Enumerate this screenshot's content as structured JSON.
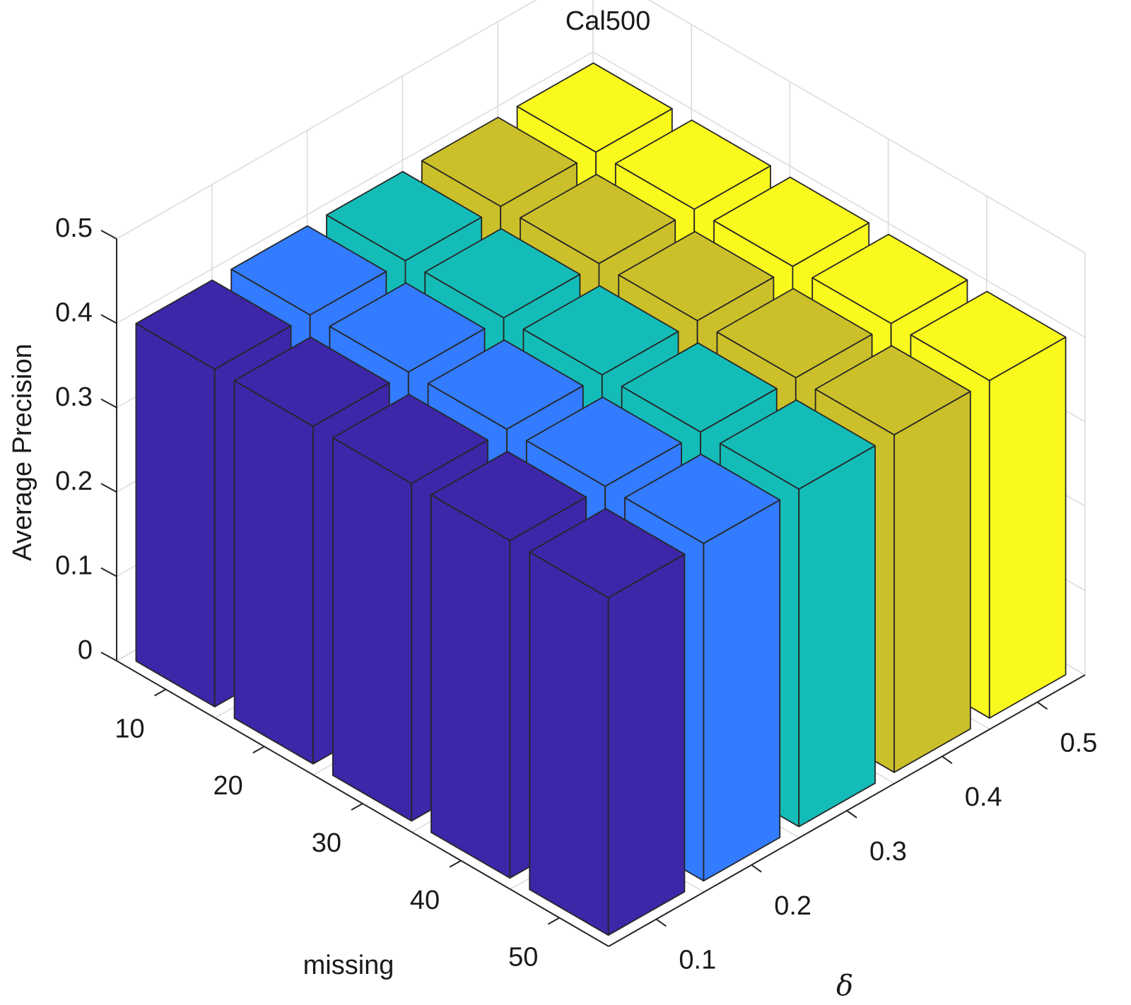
{
  "chart_data": {
    "type": "bar3d",
    "title": "Cal500",
    "zlabel": "Average Precision",
    "xlabel": "missing",
    "ylabel": "δ",
    "x_categories": [
      "10",
      "20",
      "30",
      "40",
      "50"
    ],
    "y_categories": [
      "0.1",
      "0.2",
      "0.3",
      "0.4",
      "0.5"
    ],
    "z_ticks": [
      "0",
      "0.1",
      "0.2",
      "0.3",
      "0.4",
      "0.5"
    ],
    "zlim": [
      0,
      0.5
    ],
    "series": [
      {
        "delta": "0.1",
        "color": "#3D26A8",
        "values": [
          0.4,
          0.4,
          0.4,
          0.4,
          0.4
        ]
      },
      {
        "delta": "0.2",
        "color": "#337BFF",
        "values": [
          0.4,
          0.4,
          0.4,
          0.4,
          0.4
        ]
      },
      {
        "delta": "0.3",
        "color": "#14BCB8",
        "values": [
          0.4,
          0.4,
          0.4,
          0.4,
          0.4
        ]
      },
      {
        "delta": "0.4",
        "color": "#CCC02A",
        "values": [
          0.4,
          0.4,
          0.4,
          0.4,
          0.4
        ]
      },
      {
        "delta": "0.5",
        "color": "#FAF91E",
        "values": [
          0.4,
          0.4,
          0.4,
          0.4,
          0.4
        ]
      }
    ],
    "grid": true
  }
}
